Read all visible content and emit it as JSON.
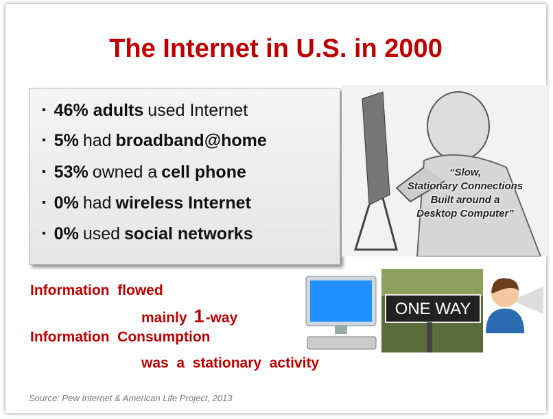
{
  "title": "The Internet in U.S. in 2000",
  "bullets": [
    {
      "parts": [
        {
          "text": "46% adults",
          "bold": true
        },
        {
          "text": "used Internet",
          "bold": false
        }
      ]
    },
    {
      "parts": [
        {
          "text": "5%",
          "bold": true
        },
        {
          "text": "had",
          "bold": false
        },
        {
          "text": "broadband@home",
          "bold": true
        }
      ]
    },
    {
      "parts": [
        {
          "text": "53%",
          "bold": true
        },
        {
          "text": "owned a",
          "bold": false
        },
        {
          "text": "cell phone",
          "bold": true
        }
      ]
    },
    {
      "parts": [
        {
          "text": "0%",
          "bold": true
        },
        {
          "text": "had",
          "bold": false
        },
        {
          "text": "wireless Internet",
          "bold": true
        }
      ]
    },
    {
      "parts": [
        {
          "text": "0%",
          "bold": true
        },
        {
          "text": "used",
          "bold": false
        },
        {
          "text": "social networks",
          "bold": true
        }
      ]
    }
  ],
  "quote": [
    "“Slow,",
    "Stationary Connections",
    "Built around a",
    "Desktop Computer”"
  ],
  "statement": [
    {
      "parts": [
        {
          "text": "Information  flowed",
          "large": false
        }
      ]
    },
    {
      "parts": [
        {
          "text": "mainly",
          "large": false
        },
        {
          "text": "1",
          "large": true
        },
        {
          "text": "-way",
          "large": false
        }
      ]
    },
    {
      "parts": [
        {
          "text": "Information  Consumption",
          "large": false
        }
      ]
    },
    {
      "parts": [
        {
          "text": "was  a  stationary  activity",
          "large": false
        }
      ]
    }
  ],
  "sign": "ONE WAY",
  "source": "Source: Pew Internet & American Life Project, 2013"
}
